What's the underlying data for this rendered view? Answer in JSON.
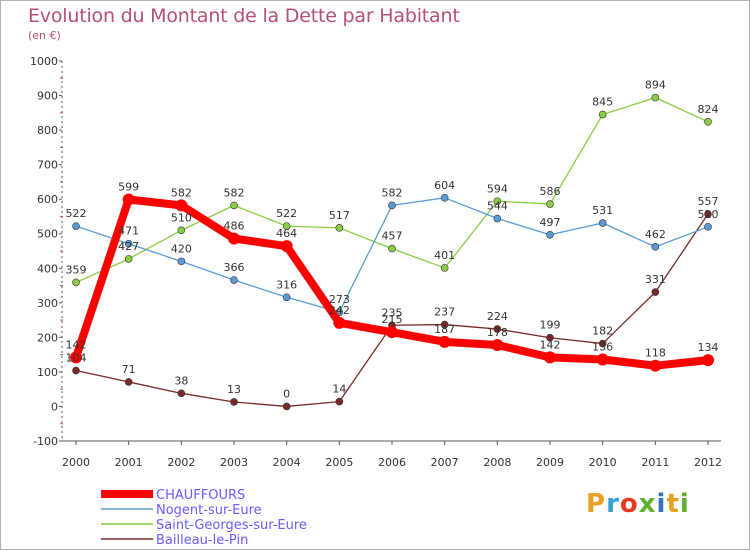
{
  "title": "Evolution du Montant de la Dette par Habitant",
  "subtitle": "(en €)",
  "logo": {
    "letters": [
      {
        "ch": "P",
        "color": "#e8a020"
      },
      {
        "ch": "r",
        "color": "#3aa0d0"
      },
      {
        "ch": "o",
        "color": "#e83a20"
      },
      {
        "ch": "x",
        "color": "#60b030"
      },
      {
        "ch": "i",
        "color": "#3a70c0"
      },
      {
        "ch": "t",
        "color": "#e8a020"
      },
      {
        "ch": "i",
        "color": "#60b030"
      }
    ]
  },
  "chart_data": {
    "type": "line",
    "title": "Evolution du Montant de la Dette par Habitant",
    "subtitle": "(en €)",
    "x": [
      "2000",
      "2001",
      "2002",
      "2003",
      "2004",
      "2005",
      "2006",
      "2007",
      "2008",
      "2009",
      "2010",
      "2011",
      "2012"
    ],
    "ylim": [
      -100,
      1000
    ],
    "yticks": [
      -100,
      0,
      100,
      200,
      300,
      400,
      500,
      600,
      700,
      800,
      900,
      1000
    ],
    "grid": false,
    "legend_placement": "bottom-left",
    "series": [
      {
        "name": "CHAUFFOURS",
        "color": "#ff0000",
        "values": [
          142,
          599,
          582,
          486,
          464,
          242,
          215,
          187,
          178,
          142,
          136,
          118,
          134
        ]
      },
      {
        "name": "Nogent-sur-Eure",
        "color": "#5b9bd5",
        "values": [
          522,
          471,
          420,
          366,
          316,
          273,
          582,
          604,
          544,
          497,
          531,
          462,
          520
        ]
      },
      {
        "name": "Saint-Georges-sur-Eure",
        "color": "#8ccc44",
        "values": [
          359,
          427,
          510,
          582,
          522,
          517,
          457,
          401,
          594,
          586,
          845,
          894,
          824
        ]
      },
      {
        "name": "Bailleau-le-Pin",
        "color": "#7b2a2a",
        "values": [
          104,
          71,
          38,
          13,
          0,
          14,
          235,
          237,
          224,
          199,
          182,
          331,
          557
        ]
      }
    ],
    "legend": [
      "CHAUFFOURS",
      "Nogent-sur-Eure",
      "Saint-Georges-sur-Eure",
      "Bailleau-le-Pin"
    ]
  }
}
